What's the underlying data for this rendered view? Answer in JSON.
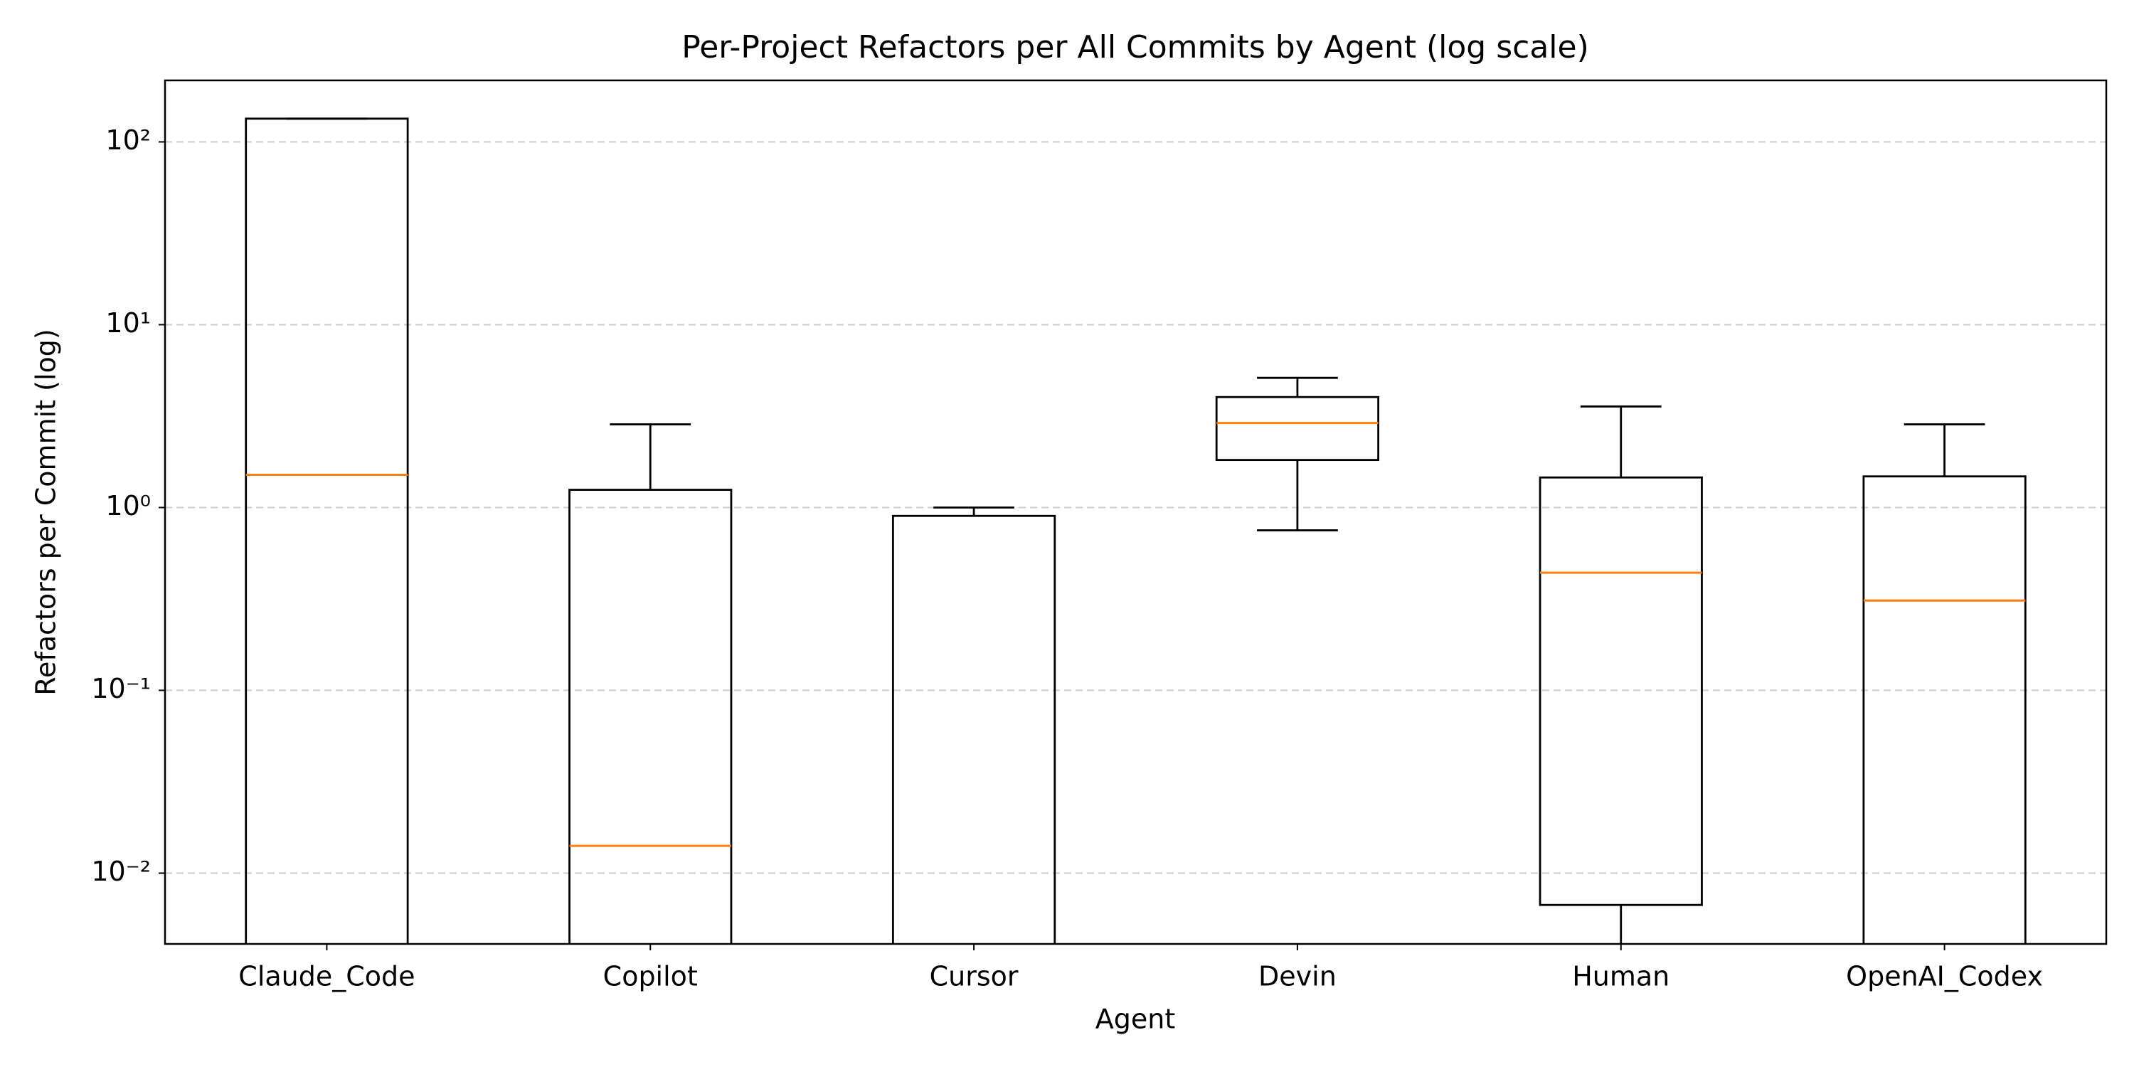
{
  "chart_data": {
    "type": "box",
    "title": "Per-Project Refactors per All Commits by Agent (log scale)",
    "x_label": "Agent",
    "y_label": "Refactors per Commit (log)",
    "categories": [
      "Claude_Code",
      "Copilot",
      "Cursor",
      "Devin",
      "Human",
      "OpenAI_Codex"
    ],
    "boxes": [
      {
        "whislo": 0,
        "q1": 0,
        "med": 1.51,
        "q3": 134,
        "whishi": 134
      },
      {
        "whislo": 0,
        "q1": 0,
        "med": 0.0141,
        "q3": 1.25,
        "whishi": 2.85
      },
      {
        "whislo": 0,
        "q1": 0,
        "med": 0,
        "q3": 0.9,
        "whishi": 1.0
      },
      {
        "whislo": 0.75,
        "q1": 1.82,
        "med": 2.9,
        "q3": 4.02,
        "whishi": 5.12
      },
      {
        "whislo": 0,
        "q1": 0.0067,
        "med": 0.44,
        "q3": 1.46,
        "whishi": 3.57
      },
      {
        "whislo": 0,
        "q1": 0,
        "med": 0.31,
        "q3": 1.48,
        "whishi": 2.85
      }
    ],
    "box_color": "#000000",
    "median_color": "#ff7f0e",
    "ylog": true,
    "ylim": [
      0.0041,
      217
    ],
    "yticks": [
      {
        "value": 0.01,
        "label": "10⁻²"
      },
      {
        "value": 0.1,
        "label": "10⁻¹"
      },
      {
        "value": 1,
        "label": "10⁰"
      },
      {
        "value": 10,
        "label": "10¹"
      },
      {
        "value": 100,
        "label": "10²"
      }
    ],
    "grid": true
  }
}
